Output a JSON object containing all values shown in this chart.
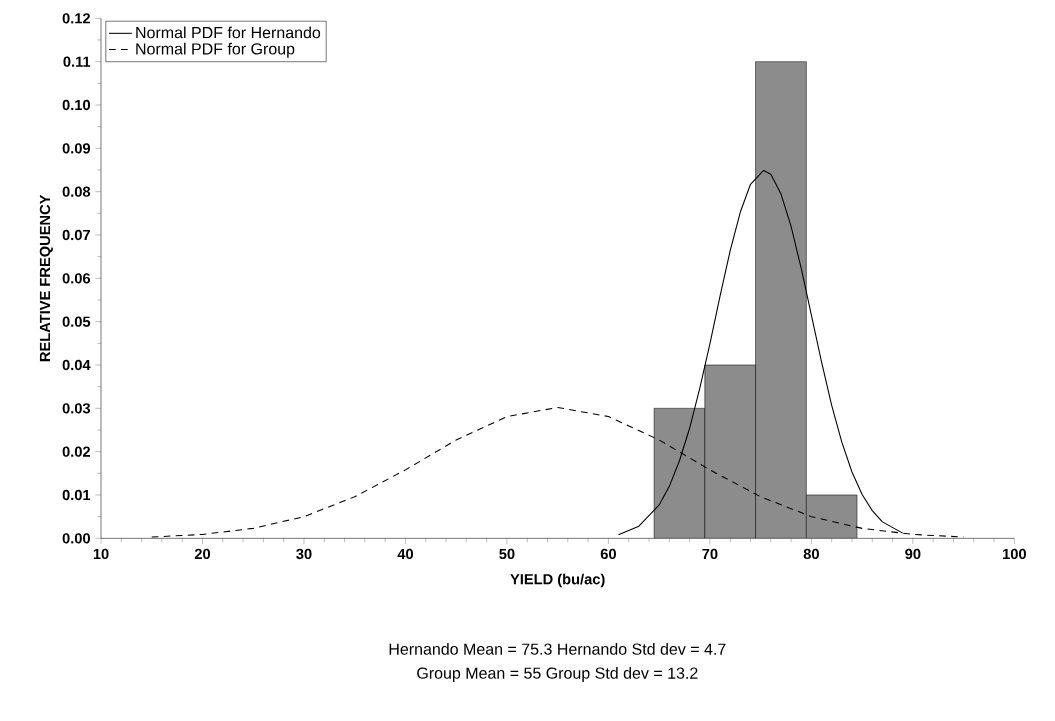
{
  "chart_data": {
    "type": "histogram",
    "xlabel": "YIELD (bu/ac)",
    "ylabel": "RELATIVE FREQUENCY",
    "bins": [
      64.5,
      69.5,
      74.5,
      79.5,
      84.5
    ],
    "values": [
      0.03,
      0.04,
      0.11,
      0.01
    ],
    "color": "#8c8c8c",
    "series": [
      {
        "name": "Normal PDF for Hernando",
        "type": "line",
        "color": "#000000",
        "line_style": "solid",
        "x": [
          61,
          63,
          65,
          66,
          67,
          68,
          69,
          70,
          71,
          72,
          73,
          74,
          75.3,
          76,
          77,
          78,
          79,
          80,
          81,
          82,
          83,
          84,
          85,
          86,
          87,
          89
        ],
        "values": [
          0.0008,
          0.0028,
          0.0077,
          0.012,
          0.0179,
          0.0254,
          0.0346,
          0.0449,
          0.0559,
          0.0664,
          0.0753,
          0.0817,
          0.0849,
          0.084,
          0.0795,
          0.072,
          0.0623,
          0.0515,
          0.0407,
          0.0307,
          0.0222,
          0.0153,
          0.0101,
          0.0064,
          0.0038,
          0.0012
        ]
      },
      {
        "name": "Normal PDF for Group",
        "type": "line",
        "color": "#000000",
        "line_style": "dashed",
        "x": [
          15,
          20,
          25,
          30,
          35,
          40,
          45,
          50,
          55,
          60,
          65,
          70,
          75,
          80,
          85,
          90,
          95
        ],
        "values": [
          0.0003,
          0.0009,
          0.0023,
          0.005,
          0.0096,
          0.0158,
          0.0227,
          0.0281,
          0.0302,
          0.0281,
          0.0227,
          0.0158,
          0.0096,
          0.005,
          0.0023,
          0.0009,
          0.0003
        ]
      }
    ],
    "xlim": [
      10,
      100
    ],
    "ylim": [
      0,
      0.12
    ],
    "xticks": [
      10,
      20,
      30,
      40,
      50,
      60,
      70,
      80,
      90,
      100
    ],
    "yticks": [
      {
        "value": 0,
        "label": "0.00"
      },
      {
        "value": 0.01,
        "label": "0.01"
      },
      {
        "value": 0.02,
        "label": "0.02"
      },
      {
        "value": 0.03,
        "label": "0.03"
      },
      {
        "value": 0.04,
        "label": "0.04"
      },
      {
        "value": 0.05,
        "label": "0.05"
      },
      {
        "value": 0.06,
        "label": "0.06"
      },
      {
        "value": 0.07,
        "label": "0.07"
      },
      {
        "value": 0.08,
        "label": "0.08"
      },
      {
        "value": 0.09,
        "label": "0.09"
      },
      {
        "value": 0.1,
        "label": "0.10"
      },
      {
        "value": 0.11,
        "label": "0.11"
      },
      {
        "value": 0.12,
        "label": "0.12"
      }
    ],
    "legend": "top left",
    "grid": false,
    "annotations": [
      "Hernando Mean = 75.3  Hernando Std dev = 4.7",
      "Group Mean = 55  Group Std dev = 13.2"
    ]
  }
}
